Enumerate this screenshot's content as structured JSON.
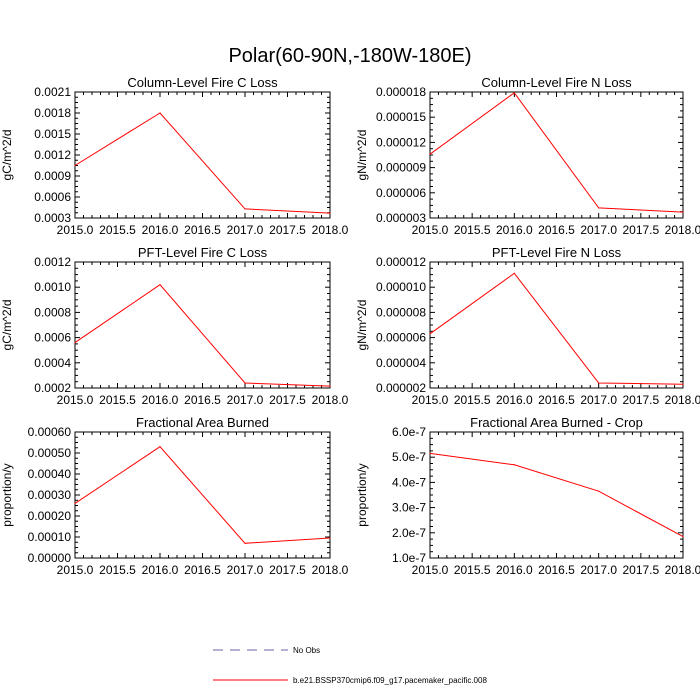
{
  "figure": {
    "title": "Polar(60-90N,-180W-180E)"
  },
  "legend": {
    "entries": [
      {
        "label": "No Obs",
        "style": "dashed",
        "color": "#6e5fa6"
      },
      {
        "label": "b.e21.BSSP370cmip6.f09_g17.pacemaker_pacific.008",
        "style": "solid",
        "color": "#ff0000"
      }
    ]
  },
  "chart_data": [
    {
      "type": "line",
      "title": "Column-Level Fire C Loss",
      "ylabel": "gC/m^2/d",
      "xlim": [
        2015.0,
        2018.0
      ],
      "ylim": [
        0.0003,
        0.0021
      ],
      "xticks": [
        "2015.0",
        "2015.5",
        "2016.0",
        "2016.5",
        "2017.0",
        "2017.5",
        "2018.0"
      ],
      "xtick_values": [
        2015.0,
        2015.5,
        2016.0,
        2016.5,
        2017.0,
        2017.5,
        2018.0
      ],
      "yticks": [
        "0.0003",
        "0.0006",
        "0.0009",
        "0.0012",
        "0.0015",
        "0.0018",
        "0.0021"
      ],
      "ytick_values": [
        0.0003,
        0.0006,
        0.0009,
        0.0012,
        0.0015,
        0.0018,
        0.0021
      ],
      "series": [
        {
          "name": "b.e21.BSSP370cmip6.f09_g17.pacemaker_pacific.008",
          "color": "#ff0000",
          "x": [
            2015.0,
            2016.0,
            2017.0,
            2018.0
          ],
          "values": [
            0.00105,
            0.0018,
            0.00043,
            0.00037
          ]
        }
      ]
    },
    {
      "type": "line",
      "title": "Column-Level Fire N Loss",
      "ylabel": "gN/m^2/d",
      "xlim": [
        2015.0,
        2018.0
      ],
      "ylim": [
        3e-06,
        1.8e-05
      ],
      "xticks": [
        "2015.0",
        "2015.5",
        "2016.0",
        "2016.5",
        "2017.0",
        "2017.5",
        "2018.0"
      ],
      "xtick_values": [
        2015.0,
        2015.5,
        2016.0,
        2016.5,
        2017.0,
        2017.5,
        2018.0
      ],
      "yticks": [
        "0.000003",
        "0.000006",
        "0.000009",
        "0.000012",
        "0.000015",
        "0.000018"
      ],
      "ytick_values": [
        3e-06,
        6e-06,
        9e-06,
        1.2e-05,
        1.5e-05,
        1.8e-05
      ],
      "series": [
        {
          "name": "b.e21.BSSP370cmip6.f09_g17.pacemaker_pacific.008",
          "color": "#ff0000",
          "x": [
            2015.0,
            2016.0,
            2017.0,
            2018.0
          ],
          "values": [
            1.06e-05,
            1.79e-05,
            4.2e-06,
            3.7e-06
          ]
        }
      ]
    },
    {
      "type": "line",
      "title": "PFT-Level Fire C Loss",
      "ylabel": "gC/m^2/d",
      "xlim": [
        2015.0,
        2018.0
      ],
      "ylim": [
        0.0002,
        0.0012
      ],
      "xticks": [
        "2015.0",
        "2015.5",
        "2016.0",
        "2016.5",
        "2017.0",
        "2017.5",
        "2018.0"
      ],
      "xtick_values": [
        2015.0,
        2015.5,
        2016.0,
        2016.5,
        2017.0,
        2017.5,
        2018.0
      ],
      "yticks": [
        "0.0002",
        "0.0004",
        "0.0006",
        "0.0008",
        "0.0010",
        "0.0012"
      ],
      "ytick_values": [
        0.0002,
        0.0004,
        0.0006,
        0.0008,
        0.001,
        0.0012
      ],
      "series": [
        {
          "name": "b.e21.BSSP370cmip6.f09_g17.pacemaker_pacific.008",
          "color": "#ff0000",
          "x": [
            2015.0,
            2016.0,
            2017.0,
            2018.0
          ],
          "values": [
            0.00056,
            0.00102,
            0.00024,
            0.000215
          ]
        }
      ]
    },
    {
      "type": "line",
      "title": "PFT-Level Fire N Loss",
      "ylabel": "gN/m^2/d",
      "xlim": [
        2015.0,
        2018.0
      ],
      "ylim": [
        2e-06,
        1.2e-05
      ],
      "xticks": [
        "2015.0",
        "2015.5",
        "2016.0",
        "2016.5",
        "2017.0",
        "2017.5",
        "2018.0"
      ],
      "xtick_values": [
        2015.0,
        2015.5,
        2016.0,
        2016.5,
        2017.0,
        2017.5,
        2018.0
      ],
      "yticks": [
        "0.000002",
        "0.000004",
        "0.000006",
        "0.000008",
        "0.000010",
        "0.000012"
      ],
      "ytick_values": [
        2e-06,
        4e-06,
        6e-06,
        8e-06,
        1e-05,
        1.2e-05
      ],
      "series": [
        {
          "name": "b.e21.BSSP370cmip6.f09_g17.pacemaker_pacific.008",
          "color": "#ff0000",
          "x": [
            2015.0,
            2016.0,
            2017.0,
            2018.0
          ],
          "values": [
            6.3e-06,
            1.11e-05,
            2.4e-06,
            2.3e-06
          ]
        }
      ]
    },
    {
      "type": "line",
      "title": "Fractional Area Burned",
      "ylabel": "proportion/y",
      "xlim": [
        2015.0,
        2018.0
      ],
      "ylim": [
        0.0,
        0.0006
      ],
      "xticks": [
        "2015.0",
        "2015.5",
        "2016.0",
        "2016.5",
        "2017.0",
        "2017.5",
        "2018.0"
      ],
      "xtick_values": [
        2015.0,
        2015.5,
        2016.0,
        2016.5,
        2017.0,
        2017.5,
        2018.0
      ],
      "yticks": [
        "0.00000",
        "0.00010",
        "0.00020",
        "0.00030",
        "0.00040",
        "0.00050",
        "0.00060"
      ],
      "ytick_values": [
        0.0,
        0.0001,
        0.0002,
        0.0003,
        0.0004,
        0.0005,
        0.0006
      ],
      "series": [
        {
          "name": "b.e21.BSSP370cmip6.f09_g17.pacemaker_pacific.008",
          "color": "#ff0000",
          "x": [
            2015.0,
            2016.0,
            2017.0,
            2018.0
          ],
          "values": [
            0.00026,
            0.00053,
            7e-05,
            9.5e-05
          ]
        }
      ]
    },
    {
      "type": "line",
      "title": "Fractional Area Burned - Crop",
      "ylabel": "proportion/y",
      "xlim": [
        2015.0,
        2018.0
      ],
      "ylim": [
        1e-07,
        6e-07
      ],
      "xticks": [
        "2015.0",
        "2015.5",
        "2016.0",
        "2016.5",
        "2017.0",
        "2017.5",
        "2018.0"
      ],
      "xtick_values": [
        2015.0,
        2015.5,
        2016.0,
        2016.5,
        2017.0,
        2017.5,
        2018.0
      ],
      "yticks": [
        "1.0e-7",
        "2.0e-7",
        "3.0e-7",
        "4.0e-7",
        "5.0e-7",
        "6.0e-7"
      ],
      "ytick_values": [
        1e-07,
        2e-07,
        3e-07,
        4e-07,
        5e-07,
        6e-07
      ],
      "series": [
        {
          "name": "b.e21.BSSP370cmip6.f09_g17.pacemaker_pacific.008",
          "color": "#ff0000",
          "x": [
            2015.0,
            2016.0,
            2017.0,
            2018.0
          ],
          "values": [
            5.15e-07,
            4.7e-07,
            3.65e-07,
            1.85e-07
          ]
        }
      ]
    }
  ]
}
